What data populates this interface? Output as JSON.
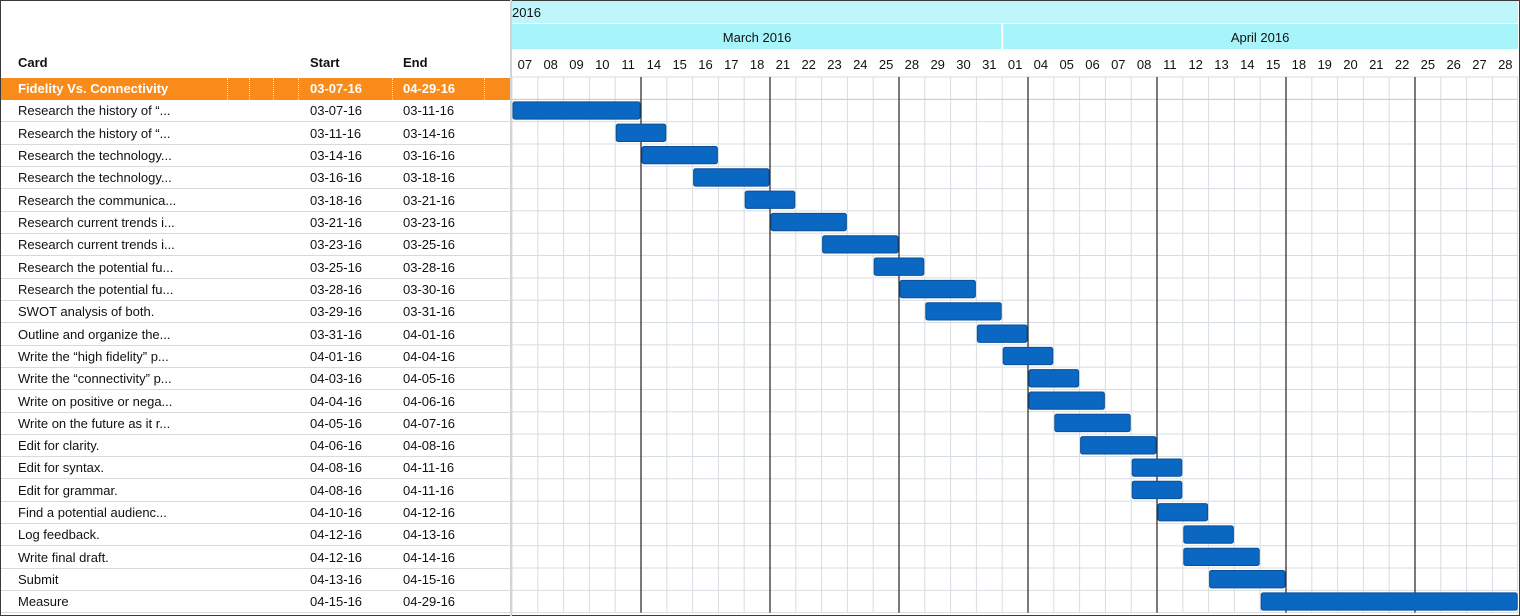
{
  "headers": {
    "card": "Card",
    "start": "Start",
    "end": "End"
  },
  "timeline": {
    "year": "2016",
    "months": [
      {
        "label": "March 2016",
        "first_day_index": 0,
        "day_count": 19
      },
      {
        "label": "April 2016",
        "first_day_index": 19,
        "day_count": 20
      }
    ],
    "days": [
      "07",
      "08",
      "09",
      "10",
      "11",
      "14",
      "15",
      "16",
      "17",
      "18",
      "21",
      "22",
      "23",
      "24",
      "25",
      "28",
      "29",
      "30",
      "31",
      "01",
      "04",
      "05",
      "06",
      "07",
      "08",
      "11",
      "12",
      "13",
      "14",
      "15",
      "18",
      "19",
      "20",
      "21",
      "22",
      "25",
      "26",
      "27",
      "28"
    ],
    "week_marker_day_indices": [
      5,
      10,
      15,
      20,
      25,
      30,
      35
    ]
  },
  "parent_task": {
    "name": "Fidelity Vs. Connectivity",
    "start": "03-07-16",
    "end": "04-29-16"
  },
  "tasks": [
    {
      "name": "Research the history of “...",
      "start": "03-07-16",
      "end": "03-11-16",
      "bar": [
        0,
        5
      ]
    },
    {
      "name": "Research the history of “...",
      "start": "03-11-16",
      "end": "03-14-16",
      "bar": [
        4,
        6
      ]
    },
    {
      "name": "Research the technology...",
      "start": "03-14-16",
      "end": "03-16-16",
      "bar": [
        5,
        8
      ]
    },
    {
      "name": "Research the technology...",
      "start": "03-16-16",
      "end": "03-18-16",
      "bar": [
        7,
        10
      ]
    },
    {
      "name": "Research the communica...",
      "start": "03-18-16",
      "end": "03-21-16",
      "bar": [
        9,
        11
      ]
    },
    {
      "name": "Research current trends i...",
      "start": "03-21-16",
      "end": "03-23-16",
      "bar": [
        10,
        13
      ]
    },
    {
      "name": "Research current trends i...",
      "start": "03-23-16",
      "end": "03-25-16",
      "bar": [
        12,
        15
      ]
    },
    {
      "name": "Research the potential fu...",
      "start": "03-25-16",
      "end": "03-28-16",
      "bar": [
        14,
        16
      ]
    },
    {
      "name": "Research the potential fu...",
      "start": "03-28-16",
      "end": "03-30-16",
      "bar": [
        15,
        18
      ]
    },
    {
      "name": "SWOT analysis of both.",
      "start": "03-29-16",
      "end": "03-31-16",
      "bar": [
        16,
        19
      ]
    },
    {
      "name": "Outline and organize the...",
      "start": "03-31-16",
      "end": "04-01-16",
      "bar": [
        18,
        20
      ]
    },
    {
      "name": "Write the “high fidelity” p...",
      "start": "04-01-16",
      "end": "04-04-16",
      "bar": [
        19,
        21
      ]
    },
    {
      "name": "Write the “connectivity” p...",
      "start": "04-03-16",
      "end": "04-05-16",
      "bar": [
        20,
        22
      ]
    },
    {
      "name": "Write on positive or nega...",
      "start": "04-04-16",
      "end": "04-06-16",
      "bar": [
        20,
        23
      ]
    },
    {
      "name": "Write on the future as it r...",
      "start": "04-05-16",
      "end": "04-07-16",
      "bar": [
        21,
        24
      ]
    },
    {
      "name": "Edit for clarity.",
      "start": "04-06-16",
      "end": "04-08-16",
      "bar": [
        22,
        25
      ]
    },
    {
      "name": "Edit for syntax.",
      "start": "04-08-16",
      "end": "04-11-16",
      "bar": [
        24,
        26
      ]
    },
    {
      "name": "Edit for grammar.",
      "start": "04-08-16",
      "end": "04-11-16",
      "bar": [
        24,
        26
      ]
    },
    {
      "name": "Find a potential audienc...",
      "start": "04-10-16",
      "end": "04-12-16",
      "bar": [
        25,
        27
      ]
    },
    {
      "name": "Log feedback.",
      "start": "04-12-16",
      "end": "04-13-16",
      "bar": [
        26,
        28
      ]
    },
    {
      "name": "Write final draft.",
      "start": "04-12-16",
      "end": "04-14-16",
      "bar": [
        26,
        29
      ]
    },
    {
      "name": "Submit",
      "start": "04-13-16",
      "end": "04-15-16",
      "bar": [
        27,
        30
      ]
    },
    {
      "name": "Measure",
      "start": "04-15-16",
      "end": "04-29-16",
      "bar": [
        29,
        39
      ]
    }
  ],
  "colors": {
    "parent_row": "#f98b1a",
    "bar_fill": "#0a67c2",
    "bar_stroke": "#0a4f96",
    "header_band": "#a8f4fb",
    "year_band": "#bff6fc",
    "grid": "#d6dde2",
    "week_line": "#222222"
  }
}
